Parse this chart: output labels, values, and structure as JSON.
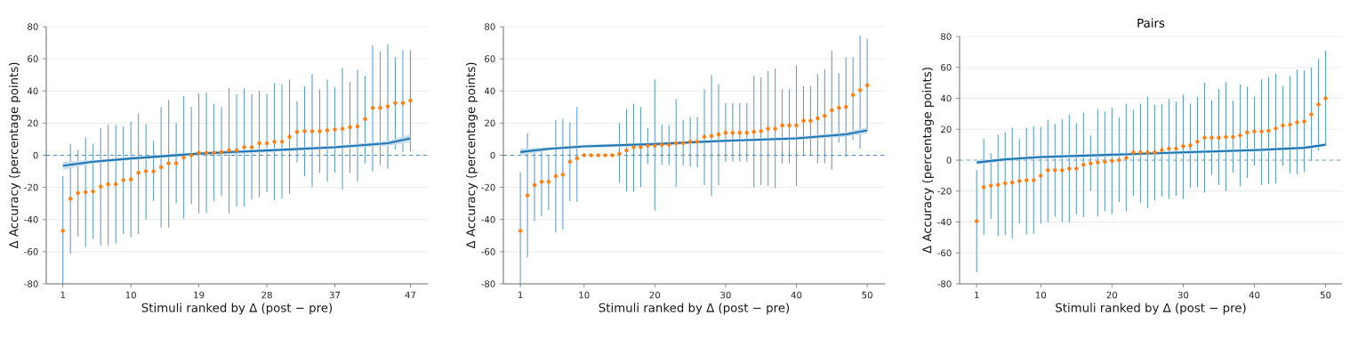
{
  "chart_data": [
    {
      "type": "scatter",
      "xlabel": "Stimuli ranked by Δ (post − pre)",
      "ylabel": "Δ Accuracy (percentage points)",
      "x": [
        1,
        2,
        3,
        4,
        5,
        6,
        7,
        8,
        9,
        10,
        11,
        12,
        13,
        14,
        15,
        16,
        17,
        18,
        19,
        20,
        21,
        22,
        23,
        24,
        25,
        26,
        27,
        28,
        29,
        30,
        31,
        32,
        33,
        34,
        35,
        36,
        37,
        38,
        39,
        40,
        41,
        42,
        43,
        44,
        45,
        46,
        47
      ],
      "xlim": [
        -1.2,
        49.3
      ],
      "xticks": [
        1,
        10,
        19,
        28,
        37,
        47
      ],
      "ylim": [
        -80,
        80
      ],
      "yticks": [
        -80,
        -60,
        -40,
        -20,
        0,
        20,
        40,
        60,
        80
      ],
      "grid": "y",
      "ref_lines": [
        {
          "axis": "y",
          "value": 0,
          "color": "#1f77b4",
          "line_style": "dashed"
        }
      ],
      "series": [
        {
          "type": "scatter",
          "marker": "circle",
          "color": "#ff7f0e",
          "values": [
            -47,
            -27,
            -23.5,
            -23,
            -22.5,
            -19.5,
            -18,
            -18,
            -15.5,
            -15,
            -11,
            -10,
            -10,
            -7.5,
            -5,
            -5,
            -1.5,
            0,
            1.5,
            1.5,
            1.5,
            2,
            3,
            3,
            5,
            5,
            7.5,
            7.5,
            8.5,
            8.5,
            11.5,
            14.5,
            15,
            15,
            15,
            15.5,
            16,
            16.5,
            17.5,
            18,
            22.5,
            29.5,
            29.5,
            30.5,
            32.5,
            32.5,
            34
          ],
          "errors": [
            [
              -80,
              -13
            ],
            [
              -61.5,
              7
            ],
            [
              -50.5,
              3.5
            ],
            [
              -57,
              11
            ],
            [
              -52,
              7
            ],
            [
              -56,
              17
            ],
            [
              -56,
              19
            ],
            [
              -55,
              19
            ],
            [
              -49,
              18
            ],
            [
              -51,
              21
            ],
            [
              -49,
              26
            ],
            [
              -40,
              19.5
            ],
            [
              -28.5,
              9
            ],
            [
              -45,
              30
            ],
            [
              -45,
              34.5
            ],
            [
              -30,
              20
            ],
            [
              -39.5,
              37
            ],
            [
              -30.5,
              30
            ],
            [
              -36,
              38.5
            ],
            [
              -36,
              39
            ],
            [
              -28.5,
              32
            ],
            [
              -25.5,
              30
            ],
            [
              -36,
              42
            ],
            [
              -32,
              38
            ],
            [
              -32,
              41.5
            ],
            [
              -27.5,
              38
            ],
            [
              -26,
              40
            ],
            [
              -23,
              38
            ],
            [
              -28,
              45
            ],
            [
              -27,
              44
            ],
            [
              -24,
              47
            ],
            [
              -4.5,
              33.5
            ],
            [
              -13,
              43
            ],
            [
              -20,
              50.5
            ],
            [
              -11,
              41
            ],
            [
              -16.5,
              47
            ],
            [
              -11,
              42.5
            ],
            [
              -21.5,
              54.5
            ],
            [
              -11,
              45.5
            ],
            [
              -16.5,
              53
            ],
            [
              -5,
              49.5
            ],
            [
              -10,
              68.5
            ],
            [
              -6,
              64.5
            ],
            [
              -8.5,
              69
            ],
            [
              3.5,
              61
            ],
            [
              2,
              65.5
            ],
            [
              2.5,
              65.5
            ]
          ]
        },
        {
          "type": "line",
          "marker": "none",
          "color": "#1f77b4",
          "x": [
            1,
            5,
            10,
            19,
            28,
            37,
            44,
            47
          ],
          "values": [
            -6.5,
            -4,
            -2,
            1,
            3,
            5,
            7.5,
            10.5
          ],
          "lower": [
            -9,
            -5,
            -3,
            0,
            2,
            4,
            6,
            8
          ],
          "upper": [
            -4,
            -3,
            -1,
            2,
            4,
            6,
            9,
            13
          ]
        }
      ]
    },
    {
      "type": "scatter",
      "xlabel": "Stimuli ranked by Δ (post − pre)",
      "ylabel": "Δ Accuracy (percentage points)",
      "x": [
        1,
        2,
        3,
        4,
        5,
        6,
        7,
        8,
        9,
        10,
        11,
        12,
        13,
        14,
        15,
        16,
        17,
        18,
        19,
        20,
        21,
        22,
        23,
        24,
        25,
        26,
        27,
        28,
        29,
        30,
        31,
        32,
        33,
        34,
        35,
        36,
        37,
        38,
        39,
        40,
        41,
        42,
        43,
        44,
        45,
        46,
        47,
        48,
        49,
        50
      ],
      "xlim": [
        -1.4,
        52.5
      ],
      "xticks": [
        1,
        10,
        20,
        30,
        40,
        50
      ],
      "ylim": [
        -80,
        80
      ],
      "yticks": [
        -80,
        -60,
        -40,
        -20,
        0,
        20,
        40,
        60,
        80
      ],
      "grid": "y",
      "ref_lines": [
        {
          "axis": "y",
          "value": 0,
          "color": "#1f77b4",
          "line_style": "dashed"
        }
      ],
      "series": [
        {
          "type": "scatter",
          "marker": "circle",
          "color": "#ff7f0e",
          "values": [
            -47,
            -25,
            -18.5,
            -16.5,
            -16.5,
            -13,
            -12,
            -4,
            -2,
            0,
            0,
            0,
            0,
            0,
            1,
            3,
            5,
            5,
            6,
            6,
            6.5,
            6.5,
            7.5,
            7.5,
            8.5,
            8.5,
            11.5,
            12,
            13,
            14,
            14,
            14,
            14,
            14.5,
            15,
            16.5,
            16.5,
            18.5,
            18.5,
            18.5,
            21.5,
            21.5,
            23,
            24.5,
            28,
            29.5,
            30,
            37.5,
            40.5,
            43.5
          ],
          "errors": [
            [
              -80,
              -10.5
            ],
            [
              -63.5,
              13.5
            ],
            [
              -41,
              4.5
            ],
            [
              -38,
              3.5
            ],
            [
              -34,
              0.5
            ],
            [
              -48,
              22
            ],
            [
              -46,
              22.5
            ],
            [
              -28.5,
              20.5
            ],
            [
              -29,
              30
            ],
            null,
            null,
            null,
            null,
            null,
            [
              -17,
              20
            ],
            [
              -22.5,
              28.5
            ],
            [
              -22.5,
              32
            ],
            [
              -20,
              30
            ],
            [
              -5.5,
              17
            ],
            [
              -34.5,
              47
            ],
            [
              -6,
              19
            ],
            [
              -6,
              19
            ],
            [
              -19.5,
              35
            ],
            [
              -6.5,
              22
            ],
            [
              -7,
              24
            ],
            [
              -7.5,
              24
            ],
            [
              -18.5,
              41
            ],
            [
              -25.5,
              50
            ],
            [
              -18.5,
              44
            ],
            [
              -4,
              32.5
            ],
            [
              -4,
              32.5
            ],
            [
              -4,
              32.5
            ],
            [
              -4,
              32.5
            ],
            [
              -20,
              49.5
            ],
            [
              -18.5,
              48.5
            ],
            [
              -19,
              52.5
            ],
            [
              -20.5,
              54
            ],
            [
              -5,
              41
            ],
            [
              -5,
              41
            ],
            [
              -19,
              56
            ],
            [
              0,
              43
            ],
            [
              0,
              43
            ],
            [
              -5,
              50.5
            ],
            [
              -5,
              53.5
            ],
            [
              -9,
              65
            ],
            [
              8,
              51
            ],
            [
              -1,
              61
            ],
            [
              9.5,
              61
            ],
            [
              4,
              74.5
            ],
            [
              15.5,
              72.5
            ]
          ]
        },
        {
          "type": "line",
          "marker": "none",
          "color": "#1f77b4",
          "x": [
            1,
            5,
            10,
            20,
            30,
            40,
            47,
            50
          ],
          "values": [
            2,
            4,
            5.5,
            7,
            9,
            10.5,
            13,
            15.5
          ],
          "lower": [
            0,
            3,
            4.5,
            6,
            8,
            9.5,
            11.5,
            13.5
          ],
          "upper": [
            4,
            5,
            6.5,
            8,
            10,
            11.5,
            14.5,
            17.5
          ]
        }
      ]
    },
    {
      "type": "scatter",
      "title": "Pairs",
      "xlabel": "Stimuli ranked by Δ (post − pre)",
      "ylabel": "Δ Accuracy (percentage points)",
      "x": [
        1,
        2,
        3,
        4,
        5,
        6,
        7,
        8,
        9,
        10,
        11,
        12,
        13,
        14,
        15,
        16,
        17,
        18,
        19,
        20,
        21,
        22,
        23,
        24,
        25,
        26,
        27,
        28,
        29,
        30,
        31,
        32,
        33,
        34,
        35,
        36,
        37,
        38,
        39,
        40,
        41,
        42,
        43,
        44,
        45,
        46,
        47,
        48,
        49,
        50
      ],
      "xlim": [
        -1.4,
        52.3
      ],
      "xticks": [
        1,
        10,
        20,
        30,
        40,
        50
      ],
      "ylim": [
        -80,
        80
      ],
      "yticks": [
        -80,
        -60,
        -40,
        -20,
        0,
        20,
        40,
        60,
        80
      ],
      "grid": "y",
      "ref_lines": [
        {
          "axis": "y",
          "value": 0,
          "color": "#1f77b4",
          "line_style": "dashed"
        }
      ],
      "series": [
        {
          "type": "scatter",
          "marker": "circle",
          "color": "#ff7f0e",
          "values": [
            -39.5,
            -17.5,
            -16.5,
            -16,
            -15,
            -14.5,
            -13.5,
            -13,
            -13,
            -10,
            -6.5,
            -6.5,
            -6.5,
            -5.5,
            -5.5,
            -3,
            -2,
            -1.5,
            -1,
            -0.5,
            0,
            1.5,
            5,
            5,
            5,
            5,
            6.5,
            7.5,
            7.5,
            9,
            9.5,
            12,
            14.5,
            14.5,
            14.5,
            15,
            15,
            16,
            18,
            18.5,
            18.5,
            19,
            20.5,
            22.5,
            23,
            24.5,
            25,
            29.5,
            36,
            40
          ],
          "errors": [
            [
              -72.5,
              -6.5
            ],
            [
              -48.5,
              14
            ],
            [
              -38,
              4.5
            ],
            [
              -49,
              16.5
            ],
            [
              -48.5,
              18
            ],
            [
              -50.5,
              21
            ],
            [
              -41,
              14
            ],
            [
              -48,
              21
            ],
            [
              -47.5,
              22
            ],
            [
              -41,
              21.5
            ],
            [
              -40,
              26
            ],
            [
              -36.5,
              23.5
            ],
            [
              -40,
              26.5
            ],
            [
              -40.5,
              29.5
            ],
            [
              -35,
              24
            ],
            [
              -37,
              30.5
            ],
            [
              -20,
              16
            ],
            [
              -36.5,
              33
            ],
            [
              -33,
              31.5
            ],
            [
              -35,
              34
            ],
            [
              -27,
              27.5
            ],
            [
              -33,
              36.5
            ],
            [
              -23,
              32.5
            ],
            [
              -27.5,
              36.5
            ],
            [
              -31,
              41
            ],
            [
              -26,
              36
            ],
            [
              -23.5,
              36
            ],
            [
              -25,
              39.5
            ],
            [
              -23,
              38
            ],
            [
              -25,
              42.5
            ],
            [
              -18,
              36.5
            ],
            [
              -17.5,
              41
            ],
            [
              -21,
              50
            ],
            [
              -9.5,
              38.5
            ],
            [
              -16,
              46
            ],
            [
              -20,
              50.5
            ],
            [
              -8,
              38.5
            ],
            [
              -17,
              49
            ],
            [
              -11.5,
              47.5
            ],
            [
              -3.5,
              41
            ],
            [
              -16,
              52.5
            ],
            [
              -15.5,
              53.5
            ],
            [
              -15,
              56
            ],
            [
              -3.5,
              48
            ],
            [
              -8.5,
              54.5
            ],
            [
              -9,
              58.5
            ],
            [
              -7.5,
              58
            ],
            [
              -0.5,
              60
            ],
            [
              6,
              65.5
            ],
            [
              9,
              71
            ]
          ]
        },
        {
          "type": "line",
          "marker": "none",
          "color": "#1f77b4",
          "x": [
            1,
            5,
            10,
            20,
            30,
            40,
            47,
            50
          ],
          "values": [
            -1.5,
            0.5,
            2,
            3.5,
            5,
            6.5,
            8,
            10
          ],
          "lower": [
            -3,
            -0.5,
            1,
            2.5,
            4,
            5.5,
            7,
            9
          ],
          "upper": [
            0,
            1.5,
            3,
            4.5,
            6,
            7.5,
            9,
            11
          ]
        }
      ]
    }
  ]
}
